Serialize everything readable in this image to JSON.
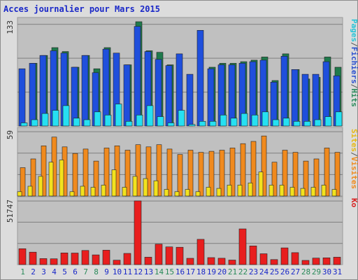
{
  "chart_data": {
    "type": "bar",
    "title": "Acces journalier pour Mars 2015",
    "categories": [
      "1",
      "2",
      "3",
      "4",
      "5",
      "6",
      "7",
      "8",
      "9",
      "10",
      "11",
      "12",
      "13",
      "14",
      "15",
      "16",
      "17",
      "18",
      "19",
      "20",
      "21",
      "22",
      "23",
      "24",
      "25",
      "26",
      "27",
      "28",
      "29",
      "30",
      "31"
    ],
    "weekend_days": [
      "1",
      "7",
      "8",
      "14",
      "15",
      "21",
      "22",
      "28",
      "29"
    ],
    "panels": [
      {
        "id": "top",
        "ymax_label": "133",
        "ylim": [
          0,
          133
        ],
        "series": [
          {
            "name": "Hits",
            "color": "#1f7a4c",
            "values": [
              0,
              80,
              90,
              100,
              95,
              75,
              90,
              73,
              100,
              0,
              78,
              133,
              96,
              94,
              78,
              0,
              0,
              0,
              75,
              80,
              80,
              82,
              84,
              88,
              58,
              92,
              72,
              60,
              62,
              88,
              75
            ]
          },
          {
            "name": "Fichiers",
            "color": "#1f4fdc",
            "values": [
              73,
              80,
              90,
              96,
              93,
              75,
              90,
              68,
              98,
              93,
              78,
              127,
              95,
              85,
              77,
              92,
              66,
              122,
              73,
              78,
              78,
              80,
              82,
              84,
              56,
              89,
              72,
              66,
              66,
              82,
              64
            ]
          },
          {
            "name": "Pages",
            "color": "#26e0f2",
            "values": [
              4,
              8,
              16,
              20,
              26,
              10,
              8,
              18,
              14,
              28,
              6,
              14,
              26,
              12,
              4,
              20,
              2,
              6,
              6,
              14,
              10,
              16,
              14,
              18,
              8,
              10,
              6,
              6,
              8,
              12,
              18
            ]
          }
        ]
      },
      {
        "id": "middle",
        "ymax_label": "59",
        "ylim": [
          0,
          59
        ],
        "series": [
          {
            "name": "Visites",
            "color": "#f08a1e",
            "values": [
              26,
              34,
              46,
              54,
              45,
              39,
              43,
              32,
              44,
              46,
              42,
              47,
              45,
              47,
              43,
              38,
              42,
              40,
              41,
              42,
              44,
              48,
              50,
              55,
              31,
              42,
              40,
              32,
              34,
              44,
              40
            ]
          },
          {
            "name": "Sites",
            "color": "#f2e21e",
            "values": [
              4,
              9,
              18,
              31,
              33,
              4,
              9,
              8,
              10,
              24,
              8,
              18,
              16,
              14,
              6,
              4,
              6,
              4,
              8,
              7,
              10,
              10,
              12,
              22,
              10,
              10,
              8,
              7,
              8,
              10,
              6
            ]
          }
        ]
      },
      {
        "id": "bottom",
        "ymax_label": "51747",
        "ylim": [
          0,
          51747
        ],
        "series": [
          {
            "name": "Ko",
            "color": "#e81e1e",
            "values": [
              12900,
              10100,
              4900,
              4700,
              9500,
              9400,
              11500,
              7900,
              11700,
              3600,
              9100,
              51747,
              6000,
              16600,
              14400,
              14100,
              5100,
              20500,
              5700,
              5200,
              3700,
              29000,
              15200,
              8800,
              4100,
              13600,
              9700,
              3400,
              5300,
              5500,
              6000
            ]
          }
        ]
      }
    ],
    "legend": {
      "top": [
        {
          "label": "Pages",
          "color": "#26c4d8"
        },
        {
          "label": "/",
          "color": "#555555"
        },
        {
          "label": "Fichiers",
          "color": "#2a4fcf"
        },
        {
          "label": "/",
          "color": "#555555"
        },
        {
          "label": "Hits",
          "color": "#2a8a5a"
        }
      ],
      "middle": [
        {
          "label": "Sites",
          "color": "#e8b814"
        },
        {
          "label": "/",
          "color": "#555555"
        },
        {
          "label": "Visites",
          "color": "#f08a1e"
        }
      ],
      "bottom": [
        {
          "label": "Ko",
          "color": "#d81e1e"
        }
      ]
    },
    "colors": {
      "title": "#1a28c8",
      "plot_background": "#c0c0c0",
      "gridline": "#7f7f7f",
      "weekday_label": "#1a28c8",
      "weekend_label": "#2a8a5a"
    }
  }
}
